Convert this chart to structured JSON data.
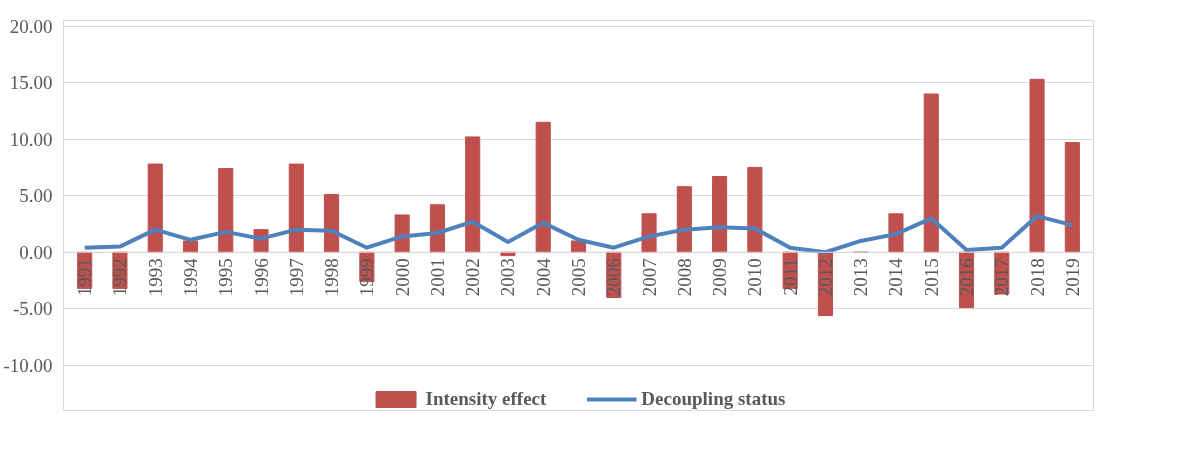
{
  "chart_data": {
    "type": "bar",
    "categories": [
      "1991",
      "1992",
      "1993",
      "1994",
      "1995",
      "1996",
      "1997",
      "1998",
      "1999",
      "2000",
      "2001",
      "2002",
      "2003",
      "2004",
      "2005",
      "2006",
      "2007",
      "2008",
      "2009",
      "2010",
      "2011",
      "2012",
      "2013",
      "2014",
      "2015",
      "2016",
      "2017",
      "2018",
      "2019"
    ],
    "series": [
      {
        "name": "Intensity effect",
        "color": "#c0504d",
        "values": [
          -3.2,
          -3.2,
          7.8,
          1.0,
          7.4,
          2.0,
          7.8,
          5.1,
          -2.6,
          3.3,
          4.2,
          10.2,
          -0.3,
          11.5,
          1.0,
          -4.0,
          3.4,
          5.8,
          6.7,
          7.5,
          -3.2,
          -5.6,
          0.0,
          3.4,
          14.0,
          -4.9,
          -3.7,
          15.3,
          9.7
        ]
      },
      {
        "name": "Decoupling status",
        "type": "line",
        "color": "#4f81bd",
        "values": [
          0.4,
          0.5,
          2.0,
          1.1,
          1.8,
          1.2,
          2.0,
          1.9,
          0.4,
          1.4,
          1.7,
          2.7,
          0.9,
          2.6,
          1.1,
          0.4,
          1.4,
          2.0,
          2.2,
          2.1,
          0.4,
          0.0,
          1.0,
          1.6,
          3.0,
          0.2,
          0.4,
          3.2,
          2.4
        ]
      }
    ],
    "ylim": [
      -14,
      20.5
    ],
    "yticks": [
      {
        "value": -10,
        "label": "-10.00"
      },
      {
        "value": -5,
        "label": "-5.00"
      },
      {
        "value": 0,
        "label": "0.00"
      },
      {
        "value": 5,
        "label": "5.00"
      },
      {
        "value": 10,
        "label": "10.00"
      },
      {
        "value": 15,
        "label": "15.00"
      },
      {
        "value": 20,
        "label": "20.00"
      }
    ],
    "grid": "y",
    "legend": "bottom"
  }
}
